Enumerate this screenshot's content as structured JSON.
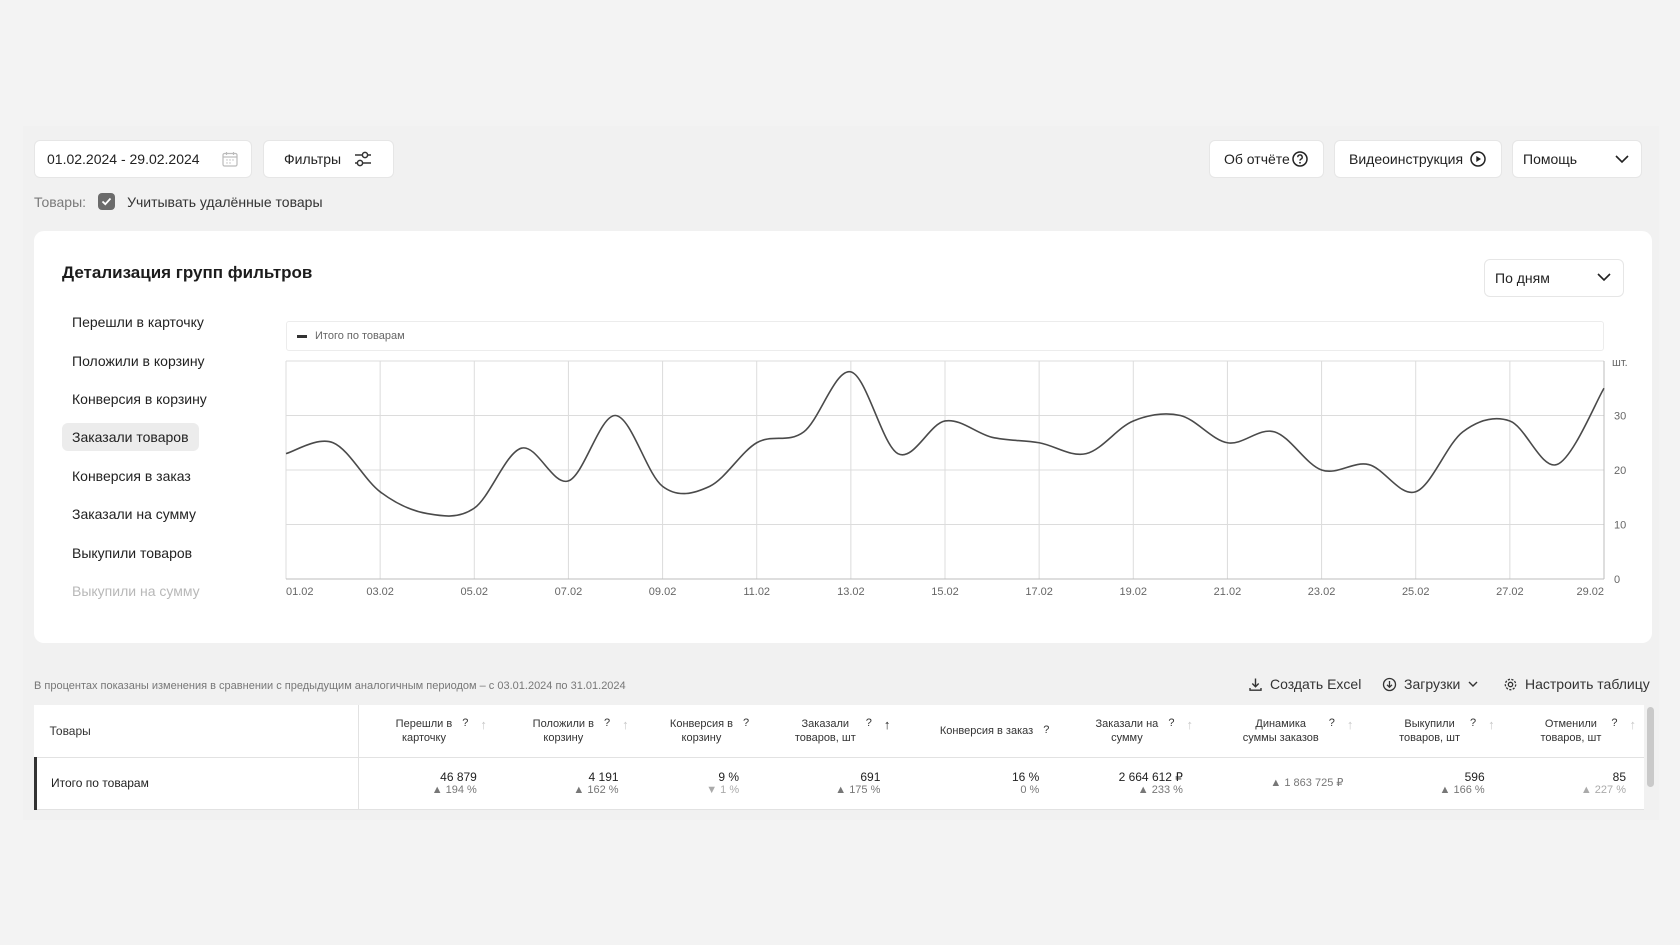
{
  "toolbar": {
    "date_range": "01.02.2024 - 29.02.2024",
    "filters_label": "Фильтры",
    "about_label": "Об отчёте",
    "video_label": "Видеоинструкция",
    "help_label": "Помощь"
  },
  "goods_filter": {
    "label": "Товары:",
    "checkbox_label": "Учитывать удалённые товары",
    "checked": true
  },
  "card": {
    "title": "Детализация групп фильтров",
    "period": "По дням",
    "metrics": [
      {
        "label": "Перешли в карточку",
        "state": "normal"
      },
      {
        "label": "Положили в корзину",
        "state": "normal"
      },
      {
        "label": "Конверсия в корзину",
        "state": "normal"
      },
      {
        "label": "Заказали товаров",
        "state": "active"
      },
      {
        "label": "Конверсия в заказ",
        "state": "normal"
      },
      {
        "label": "Заказали на сумму",
        "state": "normal"
      },
      {
        "label": "Выкупили товаров",
        "state": "normal"
      },
      {
        "label": "Выкупили на сумму",
        "state": "faded"
      }
    ]
  },
  "chart_data": {
    "type": "line",
    "legend": "Итого по товарам",
    "y_unit": "шт.",
    "ylim": [
      0,
      40
    ],
    "y_ticks": [
      0,
      10,
      20,
      30
    ],
    "x_tick_labels": [
      "01.02",
      "03.02",
      "05.02",
      "07.02",
      "09.02",
      "11.02",
      "13.02",
      "15.02",
      "17.02",
      "19.02",
      "21.02",
      "23.02",
      "25.02",
      "27.02",
      "29.02"
    ],
    "grid": true,
    "series": [
      {
        "x": [
          "01.02",
          "02.02",
          "03.02",
          "04.02",
          "05.02",
          "06.02",
          "07.02",
          "08.02",
          "09.02",
          "10.02",
          "11.02",
          "12.02",
          "13.02",
          "14.02",
          "15.02",
          "16.02",
          "17.02",
          "18.02",
          "19.02",
          "20.02",
          "21.02",
          "22.02",
          "23.02",
          "24.02",
          "25.02",
          "26.02",
          "27.02",
          "28.02",
          "29.02"
        ],
        "values": [
          23,
          25,
          16,
          12,
          13,
          24,
          18,
          30,
          17,
          17,
          25,
          27,
          38,
          23,
          29,
          26,
          25,
          23,
          29,
          30,
          25,
          27,
          20,
          21,
          16,
          27,
          29,
          21,
          35
        ]
      }
    ]
  },
  "table": {
    "note": "В процентах показаны изменения в сравнении с предыдущим аналогичным периодом – с 03.01.2024 по 31.01.2024",
    "excel_label": "Создать Excel",
    "downloads_label": "Загрузки",
    "settings_label": "Настроить таблицу",
    "first_header": "Товары",
    "columns": [
      {
        "l1": "Перешли в",
        "l2": "карточку"
      },
      {
        "l1": "Положили в",
        "l2": "корзину"
      },
      {
        "l1": "Конверсия в",
        "l2": "корзину"
      },
      {
        "l1": "Заказали",
        "l2": "товаров, шт"
      },
      {
        "l1": "Конверсия в заказ",
        "l2": ""
      },
      {
        "l1": "Заказали на",
        "l2": "сумму"
      },
      {
        "l1": "Динамика",
        "l2": "суммы заказов"
      },
      {
        "l1": "Выкупили",
        "l2": "товаров, шт"
      },
      {
        "l1": "Отменили",
        "l2": "товаров, шт"
      }
    ],
    "question_mark": "?",
    "row": {
      "name": "Итого по товарам",
      "cells": [
        {
          "value": "46 879",
          "change": "194 %",
          "dir": "up"
        },
        {
          "value": "4 191",
          "change": "162 %",
          "dir": "up"
        },
        {
          "value": "9 %",
          "change": "1 %",
          "dir": "down"
        },
        {
          "value": "691",
          "change": "175 %",
          "dir": "up"
        },
        {
          "value": "16 %",
          "change": "0 %",
          "dir": "none"
        },
        {
          "value": "2 664 612 ₽",
          "change": "233 %",
          "dir": "up"
        },
        {
          "value": "",
          "change": "1 863 725 ₽",
          "dir": "up"
        },
        {
          "value": "596",
          "change": "166 %",
          "dir": "up"
        },
        {
          "value": "85",
          "change": "227 %",
          "dir": "up-faded"
        }
      ]
    }
  }
}
